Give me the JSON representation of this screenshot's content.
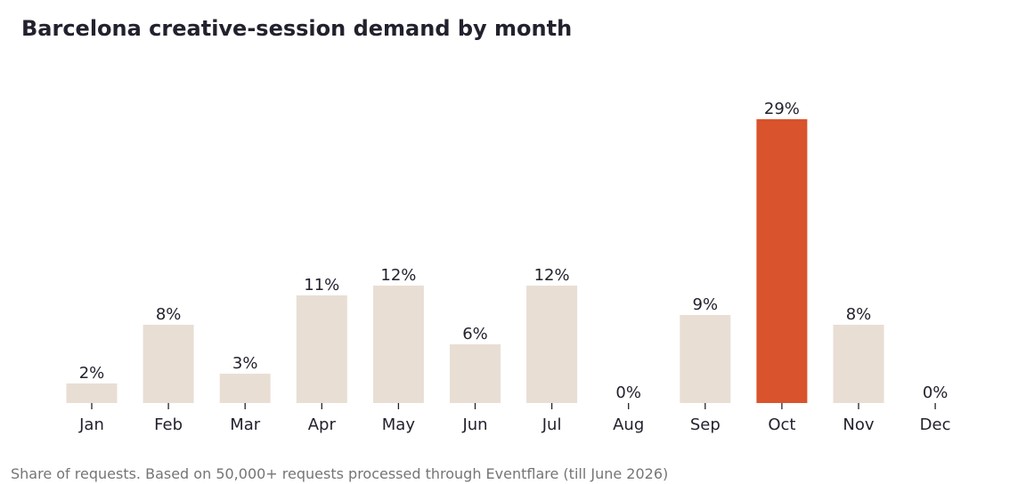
{
  "chart_data": {
    "type": "bar",
    "title": "Barcelona creative-session demand by month",
    "categories": [
      "Jan",
      "Feb",
      "Mar",
      "Apr",
      "May",
      "Jun",
      "Jul",
      "Aug",
      "Sep",
      "Oct",
      "Nov",
      "Dec"
    ],
    "values": [
      2,
      8,
      3,
      11,
      12,
      6,
      12,
      0,
      9,
      29,
      8,
      0
    ],
    "value_labels": [
      "2%",
      "8%",
      "3%",
      "11%",
      "12%",
      "6%",
      "12%",
      "0%",
      "9%",
      "29%",
      "8%",
      "0%"
    ],
    "unit": "%",
    "highlight_category": "Oct",
    "xlabel": "",
    "ylabel": "",
    "ylim": [
      0,
      32
    ],
    "grid": false,
    "legend": "none",
    "colors": {
      "bar": "#e8ded4",
      "highlight": "#d9532c",
      "text": "#22222e",
      "tick": "#22222e"
    }
  },
  "footnote": "Share of requests. Based on 50,000+ requests processed through Eventflare (till June 2026)"
}
